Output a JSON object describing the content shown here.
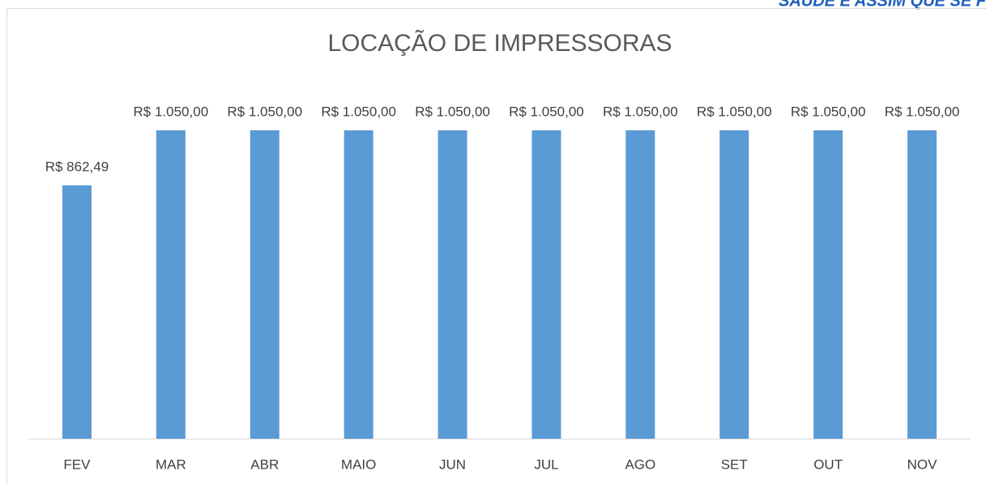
{
  "header": {
    "text": "SAÚDE É ASSIM QUE SE F"
  },
  "chart_data": {
    "type": "bar",
    "title": "LOCAÇÃO DE IMPRESSORAS",
    "categories": [
      "FEV",
      "MAR",
      "ABR",
      "MAIO",
      "JUN",
      "JUL",
      "AGO",
      "SET",
      "OUT",
      "NOV"
    ],
    "values": [
      862.49,
      1050,
      1050,
      1050,
      1050,
      1050,
      1050,
      1050,
      1050,
      1050
    ],
    "value_labels": [
      "R$ 862,49",
      "R$ 1.050,00",
      "R$ 1.050,00",
      "R$ 1.050,00",
      "R$ 1.050,00",
      "R$ 1.050,00",
      "R$ 1.050,00",
      "R$ 1.050,00",
      "R$ 1.050,00",
      "R$ 1.050,00"
    ],
    "color": "#5b9bd5"
  }
}
